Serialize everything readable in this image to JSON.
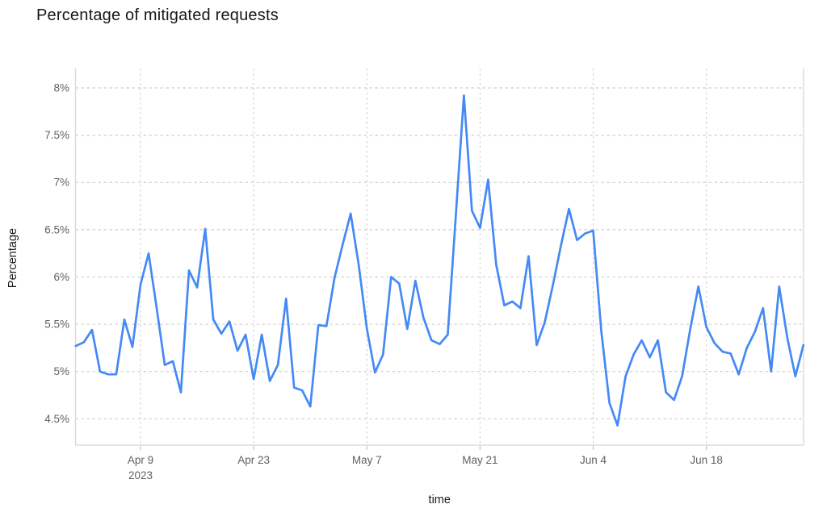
{
  "page": {
    "title": "Percentage of mitigated requests"
  },
  "chart_data": {
    "type": "line",
    "title": "Percentage of mitigated requests",
    "xlabel": "time",
    "ylabel": "Percentage",
    "legend_position": "none",
    "grid": "dashed-both",
    "line_color": "#4589f5",
    "grid_color": "#cfcfcf",
    "axis_border_color": "#d8d8d8",
    "tick_label_color": "#5d6166",
    "axis_title_color": "#17191c",
    "ylim_ticks": [
      8,
      4.5
    ],
    "y_ticks": [
      {
        "value": 8,
        "label": "8%"
      },
      {
        "value": 7.5,
        "label": "7.5%"
      },
      {
        "value": 7,
        "label": "7%"
      },
      {
        "value": 6.5,
        "label": "6.5%"
      },
      {
        "value": 6,
        "label": "6%"
      },
      {
        "value": 5.5,
        "label": "5.5%"
      },
      {
        "value": 5,
        "label": "5%"
      },
      {
        "value": 4.5,
        "label": "4.5%"
      }
    ],
    "x_ticks": [
      {
        "index": 8,
        "label": "Apr 9",
        "sublabel": "2023"
      },
      {
        "index": 22,
        "label": "Apr 23",
        "sublabel": ""
      },
      {
        "index": 36,
        "label": "May 7",
        "sublabel": ""
      },
      {
        "index": 50,
        "label": "May 21",
        "sublabel": ""
      },
      {
        "index": 64,
        "label": "Jun 4",
        "sublabel": ""
      },
      {
        "index": 78,
        "label": "Jun 18",
        "sublabel": ""
      }
    ],
    "x": [
      "Apr 1",
      "Apr 2",
      "Apr 3",
      "Apr 4",
      "Apr 5",
      "Apr 6",
      "Apr 7",
      "Apr 8",
      "Apr 9",
      "Apr 10",
      "Apr 11",
      "Apr 12",
      "Apr 13",
      "Apr 14",
      "Apr 15",
      "Apr 16",
      "Apr 17",
      "Apr 18",
      "Apr 19",
      "Apr 20",
      "Apr 21",
      "Apr 22",
      "Apr 23",
      "Apr 24",
      "Apr 25",
      "Apr 26",
      "Apr 27",
      "Apr 28",
      "Apr 29",
      "Apr 30",
      "May 1",
      "May 2",
      "May 3",
      "May 4",
      "May 5",
      "May 6",
      "May 7",
      "May 8",
      "May 9",
      "May 10",
      "May 11",
      "May 12",
      "May 13",
      "May 14",
      "May 15",
      "May 16",
      "May 17",
      "May 18",
      "May 19",
      "May 20",
      "May 21",
      "May 22",
      "May 23",
      "May 24",
      "May 25",
      "May 26",
      "May 27",
      "May 28",
      "May 29",
      "May 30",
      "May 31",
      "Jun 1",
      "Jun 2",
      "Jun 3",
      "Jun 4",
      "Jun 5",
      "Jun 6",
      "Jun 7",
      "Jun 8",
      "Jun 9",
      "Jun 10",
      "Jun 11",
      "Jun 12",
      "Jun 13",
      "Jun 14",
      "Jun 15",
      "Jun 16",
      "Jun 17",
      "Jun 18",
      "Jun 19",
      "Jun 20",
      "Jun 21",
      "Jun 22",
      "Jun 23",
      "Jun 24",
      "Jun 25",
      "Jun 26",
      "Jun 27",
      "Jun 28",
      "Jun 29",
      "Jun 30"
    ],
    "values": [
      5.27,
      5.31,
      5.44,
      5.0,
      4.97,
      4.97,
      5.55,
      5.26,
      5.92,
      6.25,
      5.67,
      5.07,
      5.11,
      4.78,
      6.07,
      5.89,
      6.51,
      5.55,
      5.4,
      5.53,
      5.22,
      5.39,
      4.92,
      5.39,
      4.9,
      5.07,
      5.77,
      4.83,
      4.8,
      4.63,
      5.49,
      5.48,
      5.99,
      6.34,
      6.67,
      6.12,
      5.45,
      4.99,
      5.18,
      6.0,
      5.93,
      5.45,
      5.96,
      5.57,
      5.33,
      5.29,
      5.39,
      6.65,
      7.92,
      6.7,
      6.52,
      7.03,
      6.13,
      5.7,
      5.74,
      5.67,
      6.22,
      5.28,
      5.52,
      5.91,
      6.33,
      6.72,
      6.39,
      6.46,
      6.49,
      5.43,
      4.67,
      4.43,
      4.95,
      5.18,
      5.33,
      5.15,
      5.33,
      4.78,
      4.7,
      4.95,
      5.45,
      5.9,
      5.47,
      5.3,
      5.21,
      5.19,
      4.97,
      5.25,
      5.42,
      5.67,
      5.0,
      5.9,
      5.36,
      4.95,
      5.28
    ]
  }
}
